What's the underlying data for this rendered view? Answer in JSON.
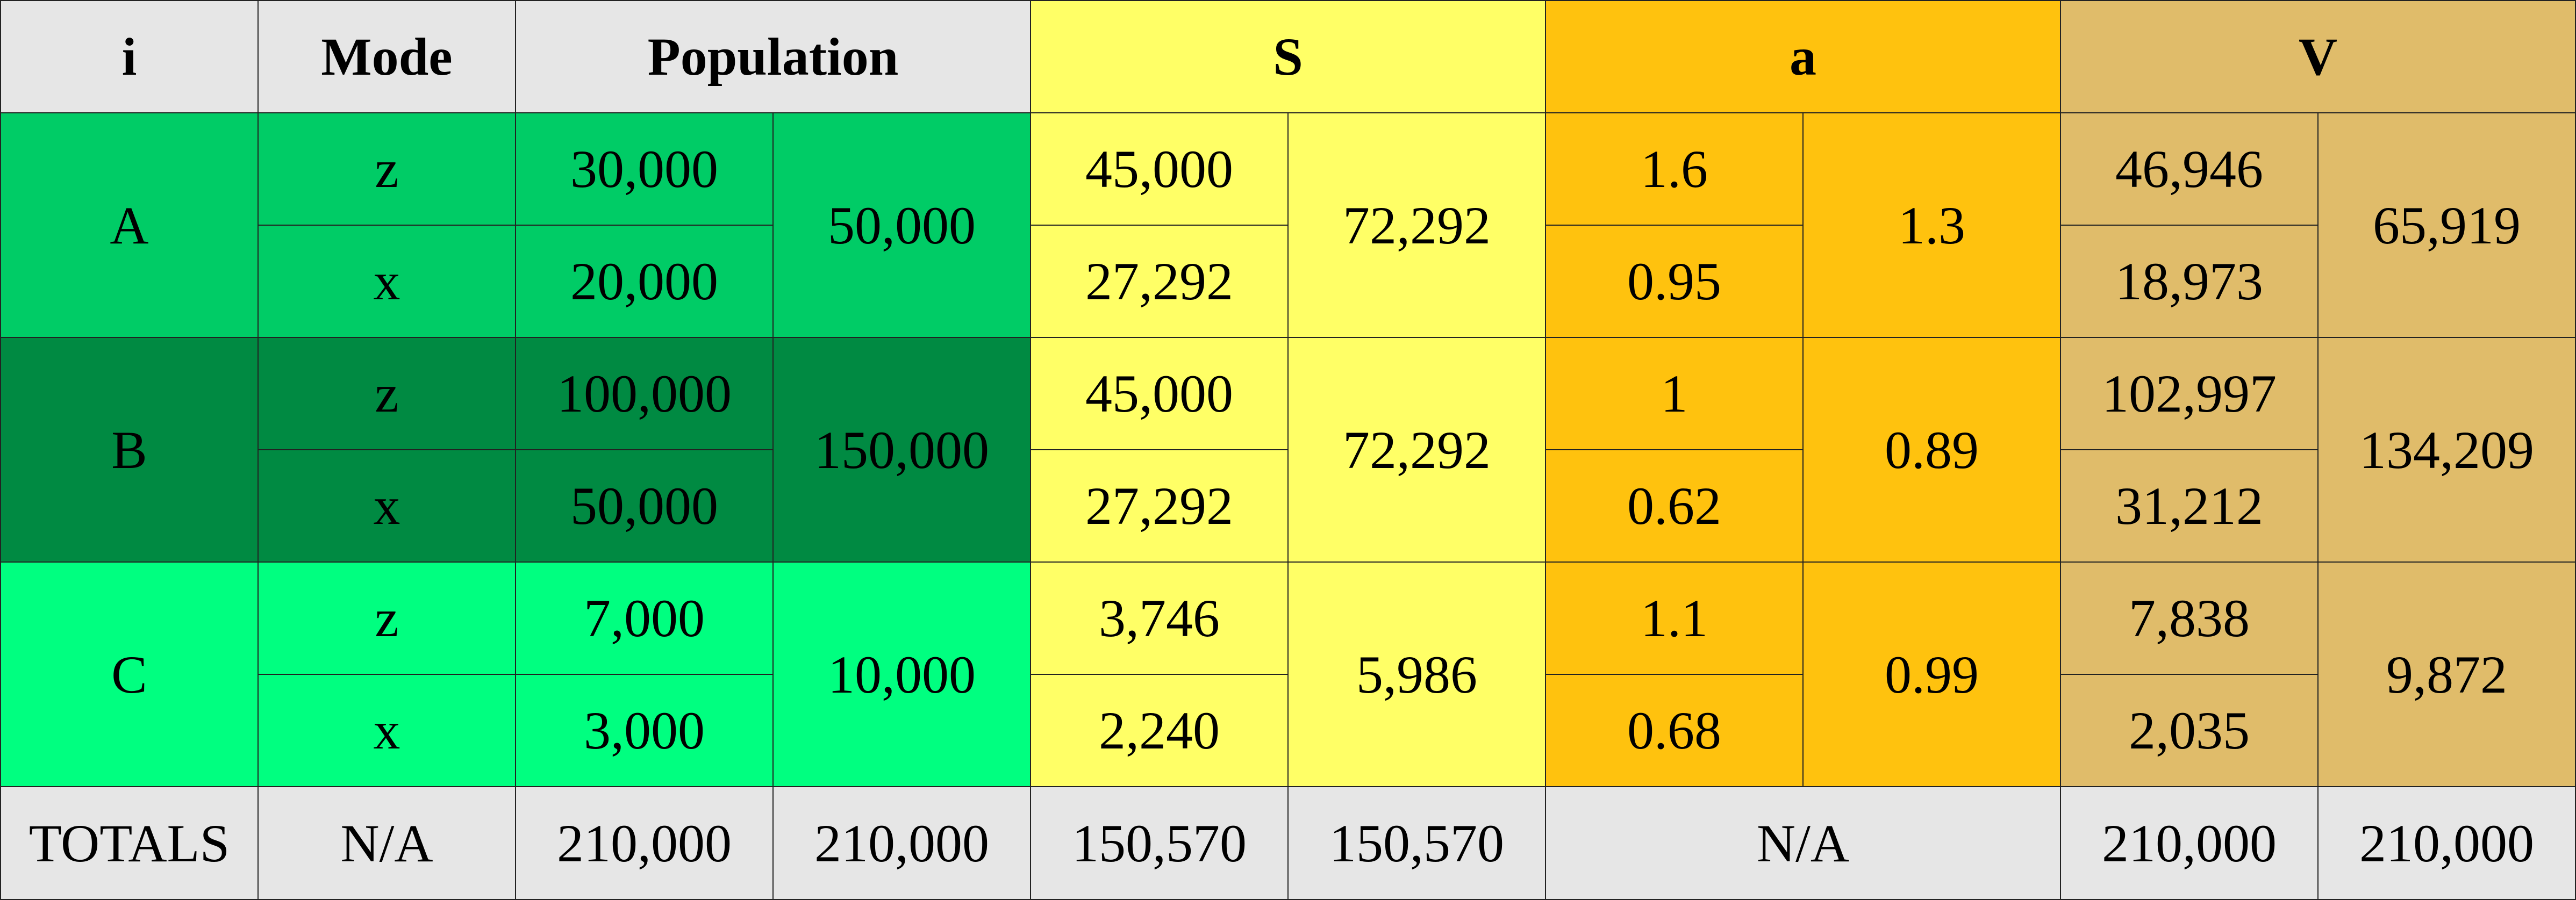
{
  "colors": {
    "header_gray": "#e6e6e6",
    "totals_gray": "#e6e6e6",
    "group_a_green": "#00cc66",
    "group_b_green": "#008a42",
    "group_c_green": "#00ff80",
    "s_yellow": "#ffff66",
    "a_orange": "#ffc20e",
    "v_tan": "#e0bc6a"
  },
  "header": {
    "i": "i",
    "mode": "Mode",
    "population": "Population",
    "s": "S",
    "a": "a",
    "v": "V"
  },
  "groups": [
    {
      "i": "A",
      "population_total": "50,000",
      "s_total": "72,292",
      "a_total": "1.3",
      "v_total": "65,919",
      "rows": [
        {
          "mode": "z",
          "population": "30,000",
          "s": "45,000",
          "a": "1.6",
          "v": "46,946"
        },
        {
          "mode": "x",
          "population": "20,000",
          "s": "27,292",
          "a": "0.95",
          "v": "18,973"
        }
      ]
    },
    {
      "i": "B",
      "population_total": "150,000",
      "s_total": "72,292",
      "a_total": "0.89",
      "v_total": "134,209",
      "rows": [
        {
          "mode": "z",
          "population": "100,000",
          "s": "45,000",
          "a": "1",
          "v": "102,997"
        },
        {
          "mode": "x",
          "population": "50,000",
          "s": "27,292",
          "a": "0.62",
          "v": "31,212"
        }
      ]
    },
    {
      "i": "C",
      "population_total": "10,000",
      "s_total": "5,986",
      "a_total": "0.99",
      "v_total": "9,872",
      "rows": [
        {
          "mode": "z",
          "population": "7,000",
          "s": "3,746",
          "a": "1.1",
          "v": "7,838"
        },
        {
          "mode": "x",
          "population": "3,000",
          "s": "2,240",
          "a": "0.68",
          "v": "2,035"
        }
      ]
    }
  ],
  "totals": {
    "label": "TOTALS",
    "mode": "N/A",
    "population_1": "210,000",
    "population_2": "210,000",
    "s_1": "150,570",
    "s_2": "150,570",
    "a": "N/A",
    "v_1": "210,000",
    "v_2": "210,000"
  }
}
